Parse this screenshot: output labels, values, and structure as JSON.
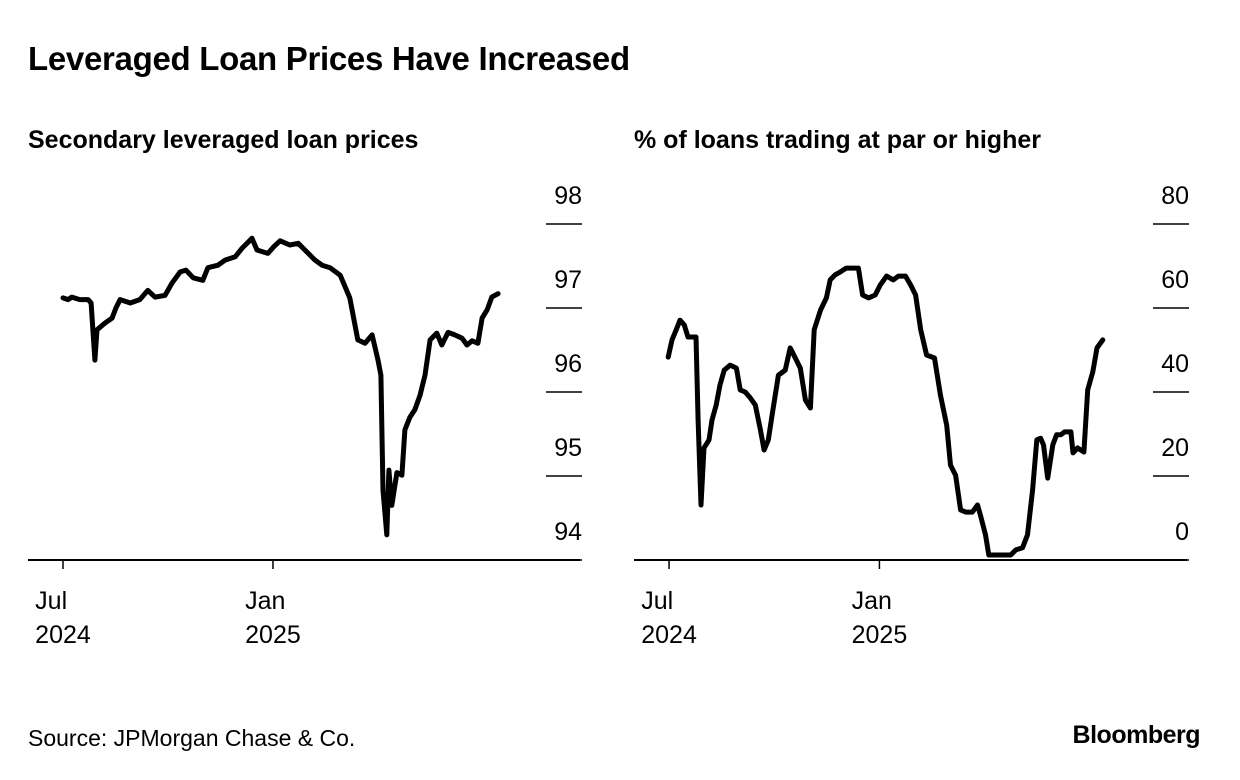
{
  "title": "Leveraged Loan Prices Have Increased",
  "source": "Source: JPMorgan Chase & Co.",
  "brand": "Bloomberg",
  "chart_data": [
    {
      "type": "line",
      "title": "Secondary leveraged loan prices",
      "color": "#000000",
      "x": [
        2024.5,
        2024.512,
        2024.521,
        2024.54,
        2024.56,
        2024.567,
        2024.576,
        2024.581,
        2024.6,
        2024.617,
        2024.626,
        2024.636,
        2024.66,
        2024.683,
        2024.702,
        2024.719,
        2024.743,
        2024.76,
        2024.779,
        2024.793,
        2024.81,
        2024.833,
        2024.845,
        2024.869,
        2024.886,
        2024.91,
        2024.926,
        2024.95,
        2024.962,
        2024.988,
        2025.002,
        2025.017,
        2025.04,
        2025.06,
        2025.076,
        2025.1,
        2025.117,
        2025.136,
        2025.16,
        2025.183,
        2025.202,
        2025.219,
        2025.236,
        2025.25,
        2025.257,
        2025.262,
        2025.271,
        2025.276,
        2025.283,
        2025.295,
        2025.307,
        2025.314,
        2025.326,
        2025.338,
        2025.35,
        2025.362,
        2025.374,
        2025.39,
        2025.402,
        2025.417,
        2025.433,
        2025.45,
        2025.462,
        2025.474,
        2025.488,
        2025.498,
        2025.51,
        2025.521,
        2025.536
      ],
      "values": [
        97.12,
        97.1,
        97.13,
        97.1,
        97.1,
        97.06,
        96.38,
        96.74,
        96.82,
        96.88,
        97.0,
        97.1,
        97.06,
        97.1,
        97.21,
        97.13,
        97.15,
        97.3,
        97.43,
        97.45,
        97.36,
        97.33,
        97.48,
        97.51,
        97.57,
        97.61,
        97.71,
        97.83,
        97.69,
        97.65,
        97.73,
        97.8,
        97.75,
        97.77,
        97.69,
        97.57,
        97.51,
        97.48,
        97.39,
        97.12,
        96.62,
        96.58,
        96.68,
        96.38,
        96.2,
        94.83,
        94.3,
        95.07,
        94.65,
        95.04,
        95.01,
        95.55,
        95.7,
        95.79,
        95.96,
        96.2,
        96.62,
        96.7,
        96.56,
        96.71,
        96.68,
        96.64,
        96.56,
        96.61,
        96.58,
        96.88,
        96.98,
        97.13,
        97.17
      ],
      "xlim": [
        2024.4167,
        2025.731
      ],
      "xticks": [
        {
          "value": 2024.5,
          "label": "Jul\n2024"
        },
        {
          "value": 2025,
          "label": "Jan\n2025"
        }
      ],
      "ylim": [
        94,
        98
      ],
      "yticks": [
        94,
        95,
        96,
        97,
        98
      ]
    },
    {
      "type": "line",
      "title": "% of loans trading at par or higher",
      "color": "#000000",
      "x": [
        2024.498,
        2024.507,
        2024.517,
        2024.526,
        2024.536,
        2024.545,
        2024.564,
        2024.569,
        2024.576,
        2024.583,
        2024.595,
        2024.602,
        2024.612,
        2024.621,
        2024.631,
        2024.645,
        2024.66,
        2024.669,
        2024.681,
        2024.693,
        2024.705,
        2024.717,
        2024.726,
        2024.736,
        2024.745,
        2024.76,
        2024.776,
        2024.788,
        2024.8,
        2024.812,
        2024.824,
        2024.836,
        2024.845,
        2024.86,
        2024.874,
        2024.883,
        2024.895,
        2024.907,
        2024.921,
        2024.95,
        2024.96,
        2024.974,
        2024.99,
        2025.002,
        2025.017,
        2025.033,
        2025.045,
        2025.062,
        2025.074,
        2025.086,
        2025.098,
        2025.112,
        2025.131,
        2025.145,
        2025.16,
        2025.169,
        2025.181,
        2025.193,
        2025.205,
        2025.221,
        2025.233,
        2025.24,
        2025.252,
        2025.26,
        2025.288,
        2025.312,
        2025.324,
        2025.34,
        2025.352,
        2025.364,
        2025.374,
        2025.383,
        2025.39,
        2025.4,
        2025.412,
        2025.421,
        2025.431,
        2025.44,
        2025.455,
        2025.46,
        2025.471,
        2025.486,
        2025.495,
        2025.507,
        2025.517,
        2025.531
      ],
      "values": [
        48.3,
        52.4,
        54.8,
        57.1,
        56.0,
        53.1,
        53.1,
        33.3,
        13.1,
        26.7,
        28.6,
        33.3,
        36.9,
        41.7,
        45.2,
        46.4,
        45.7,
        40.5,
        40.0,
        38.6,
        36.9,
        31.0,
        26.2,
        28.6,
        34.5,
        44.0,
        45.2,
        50.5,
        48.1,
        45.7,
        38.1,
        36.2,
        54.8,
        59.5,
        62.4,
        66.7,
        67.9,
        68.6,
        69.5,
        69.5,
        63.1,
        62.4,
        63.1,
        65.5,
        67.6,
        66.7,
        67.6,
        67.6,
        65.5,
        63.1,
        54.8,
        48.8,
        48.1,
        39.3,
        32.1,
        22.6,
        20.2,
        11.9,
        11.4,
        11.4,
        13.1,
        10.7,
        6.0,
        1.2,
        1.2,
        1.2,
        2.4,
        2.9,
        6.0,
        16.7,
        28.6,
        29.0,
        27.4,
        19.5,
        27.4,
        29.8,
        29.8,
        30.5,
        30.5,
        25.5,
        26.7,
        25.7,
        40.5,
        44.8,
        50.5,
        52.4
      ],
      "xlim": [
        2024.4167,
        2025.731
      ],
      "xticks": [
        {
          "value": 2024.5,
          "label": "Jul\n2024"
        },
        {
          "value": 2025,
          "label": "Jan\n2025"
        }
      ],
      "ylim": [
        0,
        80
      ],
      "yticks": [
        0,
        20,
        40,
        60,
        80
      ]
    }
  ]
}
